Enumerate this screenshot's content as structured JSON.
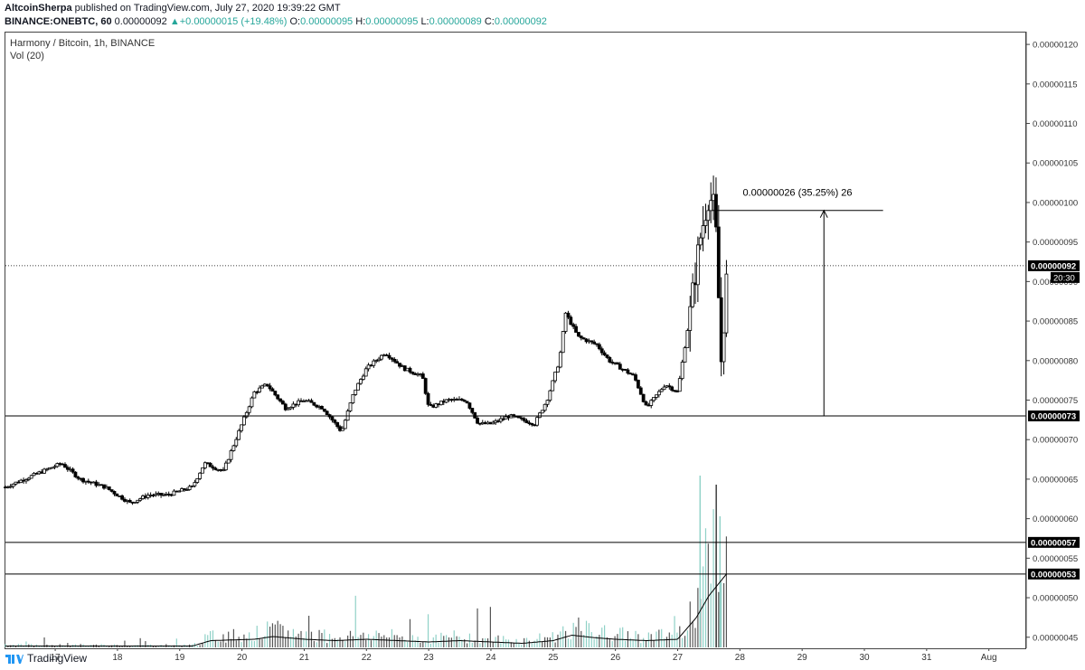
{
  "header": {
    "author": "AltcoinSherpa",
    "published_text": "published on TradingView.com, July 27, 2020 19:39:22 GMT",
    "symbol": "BINANCE:ONEBTC, 60",
    "last_price": "0.00000092",
    "change_arrow": "▲",
    "change": "+0.00000015 (+19.48%)",
    "o_label": "O:",
    "o_value": "0.00000095",
    "h_label": "H:",
    "h_value": "0.00000095",
    "l_label": "L:",
    "l_value": "0.00000089",
    "c_label": "C:",
    "c_value": "0.00000092"
  },
  "legend": {
    "title": "Harmony / Bitcoin, 1h, BINANCE",
    "volume": "Vol (20)"
  },
  "footer": {
    "logo_text": "TradingView"
  },
  "chart_data": {
    "type": "candlestick",
    "interval": "1h",
    "y_axis": {
      "labels": [
        "0.00000120",
        "0.00000115",
        "0.00000110",
        "0.00000105",
        "0.00000100",
        "0.00000095",
        "0.00000090",
        "0.00000085",
        "0.00000080",
        "0.00000075",
        "0.00000070",
        "0.00000065",
        "0.00000060",
        "0.00000055",
        "0.00000050",
        "0.00000045"
      ],
      "range": [
        4.36e-07,
        1.215e-06
      ]
    },
    "x_axis": {
      "tick_labels": [
        "17",
        "18",
        "19",
        "20",
        "21",
        "22",
        "23",
        "24",
        "25",
        "26",
        "27",
        "28",
        "29",
        "30",
        "31",
        "Aug"
      ],
      "tick_days": [
        17,
        18,
        19,
        20,
        21,
        22,
        23,
        24,
        25,
        26,
        27,
        28,
        29,
        30,
        31,
        32
      ],
      "range_days": [
        16.2,
        32.6
      ]
    },
    "price_markers": [
      {
        "value": 9.2e-07,
        "label": "0.00000092",
        "style": "dotted",
        "countdown": "20:30"
      },
      {
        "value": 7.3e-07,
        "label": "0.00000073",
        "style": "solid"
      },
      {
        "value": 5.7e-07,
        "label": "0.00000057",
        "style": "solid"
      },
      {
        "value": 5.3e-07,
        "label": "0.00000053",
        "style": "solid"
      }
    ],
    "measure": {
      "label": "0.00000026 (35.25%) 26",
      "from_price": 7.3e-07,
      "to_price": 9.9e-07,
      "day_start": 27.55,
      "day_end": 30.3,
      "arrow_day": 29.35
    },
    "price_path": [
      [
        16.2,
        6.4e-07
      ],
      [
        16.5,
        6.5e-07
      ],
      [
        16.8,
        6.6e-07
      ],
      [
        17.1,
        6.7e-07
      ],
      [
        17.4,
        6.5e-07
      ],
      [
        17.8,
        6.4e-07
      ],
      [
        18.2,
        6.2e-07
      ],
      [
        18.5,
        6.3e-07
      ],
      [
        18.8,
        6.3e-07
      ],
      [
        19.2,
        6.4e-07
      ],
      [
        19.4,
        6.7e-07
      ],
      [
        19.7,
        6.6e-07
      ],
      [
        19.9,
        7e-07
      ],
      [
        20.2,
        7.6e-07
      ],
      [
        20.4,
        7.7e-07
      ],
      [
        20.7,
        7.4e-07
      ],
      [
        21.0,
        7.5e-07
      ],
      [
        21.3,
        7.4e-07
      ],
      [
        21.6,
        7.1e-07
      ],
      [
        21.8,
        7.6e-07
      ],
      [
        22.0,
        7.9e-07
      ],
      [
        22.3,
        8.1e-07
      ],
      [
        22.6,
        7.9e-07
      ],
      [
        22.9,
        7.8e-07
      ],
      [
        23.0,
        7.4e-07
      ],
      [
        23.3,
        7.5e-07
      ],
      [
        23.6,
        7.5e-07
      ],
      [
        23.8,
        7.2e-07
      ],
      [
        24.0,
        7.2e-07
      ],
      [
        24.3,
        7.3e-07
      ],
      [
        24.7,
        7.2e-07
      ],
      [
        24.9,
        7.5e-07
      ],
      [
        25.1,
        8e-07
      ],
      [
        25.2,
        8.6e-07
      ],
      [
        25.4,
        8.3e-07
      ],
      [
        25.7,
        8.2e-07
      ],
      [
        25.9,
        8e-07
      ],
      [
        26.1,
        7.9e-07
      ],
      [
        26.3,
        7.8e-07
      ],
      [
        26.5,
        7.4e-07
      ],
      [
        26.8,
        7.7e-07
      ],
      [
        27.0,
        7.6e-07
      ],
      [
        27.2,
        8.6e-07
      ],
      [
        27.35,
        9.5e-07
      ],
      [
        27.5,
        1.01e-06
      ],
      [
        27.6,
        9.9e-07
      ],
      [
        27.7,
        8e-07
      ],
      [
        27.8,
        9.2e-07
      ]
    ],
    "volume_path": [
      [
        16.2,
        0.01
      ],
      [
        19.2,
        0.01
      ],
      [
        19.5,
        0.05
      ],
      [
        20.2,
        0.06
      ],
      [
        20.5,
        0.08
      ],
      [
        21.0,
        0.06
      ],
      [
        21.5,
        0.05
      ],
      [
        22.0,
        0.06
      ],
      [
        22.5,
        0.05
      ],
      [
        23.0,
        0.04
      ],
      [
        23.5,
        0.05
      ],
      [
        24.0,
        0.04
      ],
      [
        24.5,
        0.03
      ],
      [
        25.0,
        0.05
      ],
      [
        25.3,
        0.09
      ],
      [
        25.7,
        0.07
      ],
      [
        26.0,
        0.06
      ],
      [
        26.5,
        0.05
      ],
      [
        27.0,
        0.06
      ],
      [
        27.3,
        0.22
      ],
      [
        27.5,
        0.38
      ],
      [
        27.8,
        0.55
      ]
    ],
    "volume_spikes_days": [
      27.36,
      27.62,
      27.68
    ]
  }
}
